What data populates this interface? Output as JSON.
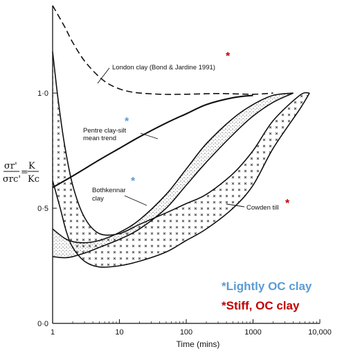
{
  "chart_data": {
    "type": "line",
    "title": "",
    "xlabel": "Time (mins)",
    "ylabel_parts": {
      "lhs_top": "σr'",
      "lhs_bottom": "σrc'",
      "rhs_top": "K",
      "rhs_bottom": "Kc",
      "equals": "="
    },
    "x_scale": "log",
    "xlim": [
      1,
      10000
    ],
    "ylim": [
      0,
      1.38
    ],
    "x_ticks": [
      {
        "value": 1,
        "label": "1"
      },
      {
        "value": 10,
        "label": "10"
      },
      {
        "value": 100,
        "label": "100"
      },
      {
        "value": 1000,
        "label": "1000"
      },
      {
        "value": 10000,
        "label": "10,000"
      }
    ],
    "y_ticks": [
      {
        "value": 0,
        "label": "0·0"
      },
      {
        "value": 0.5,
        "label": "0·5"
      },
      {
        "value": 1.0,
        "label": "1·0"
      }
    ],
    "series": [
      {
        "name": "London clay (Bond & Jardine 1991)",
        "style": "dashed",
        "x": [
          1,
          1.5,
          2,
          3,
          5,
          8,
          15,
          40,
          100,
          300,
          1000,
          2000
        ],
        "y": [
          1.38,
          1.29,
          1.22,
          1.14,
          1.07,
          1.03,
          1.005,
          0.995,
          0.995,
          0.998,
          0.995,
          1.0
        ]
      },
      {
        "name": "Pentre clay-silt mean trend",
        "style": "solid",
        "x": [
          1,
          2,
          5,
          10,
          20,
          50,
          100,
          200,
          500,
          1000
        ],
        "y": [
          0.59,
          0.64,
          0.71,
          0.76,
          0.81,
          0.87,
          0.91,
          0.95,
          0.98,
          0.99
        ]
      }
    ],
    "bands": [
      {
        "name": "Bothkennar clay",
        "fill": "stipple",
        "x_upper": [
          1,
          1.5,
          2,
          3,
          5,
          10,
          20,
          50,
          100,
          200,
          500,
          1000,
          2000,
          4000
        ],
        "y_upper": [
          0.41,
          0.37,
          0.355,
          0.35,
          0.36,
          0.395,
          0.45,
          0.56,
          0.67,
          0.78,
          0.89,
          0.95,
          0.99,
          1.0
        ],
        "x_lower": [
          1,
          1.5,
          2,
          3,
          5,
          10,
          20,
          50,
          100,
          200,
          500,
          1000,
          2000,
          4000
        ],
        "y_lower": [
          0.29,
          0.285,
          0.29,
          0.305,
          0.33,
          0.365,
          0.41,
          0.5,
          0.6,
          0.7,
          0.82,
          0.9,
          0.96,
          1.0
        ]
      },
      {
        "name": "Cowden till",
        "fill": "crosses",
        "x_upper": [
          1,
          1.2,
          1.5,
          2,
          3,
          5,
          10,
          20,
          50,
          100,
          200,
          500,
          1000,
          2000,
          5000,
          7000
        ],
        "y_upper": [
          1.18,
          0.98,
          0.78,
          0.6,
          0.46,
          0.39,
          0.39,
          0.43,
          0.48,
          0.52,
          0.56,
          0.65,
          0.75,
          0.88,
          0.99,
          1.0
        ],
        "x_lower": [
          1,
          1.3,
          1.6,
          2,
          3,
          5,
          10,
          20,
          50,
          100,
          200,
          500,
          1000,
          2000,
          5000,
          7000
        ],
        "y_lower": [
          0.62,
          0.5,
          0.4,
          0.33,
          0.27,
          0.245,
          0.25,
          0.27,
          0.31,
          0.36,
          0.41,
          0.5,
          0.6,
          0.76,
          0.93,
          1.0
        ]
      }
    ],
    "annotations": [
      {
        "text": "London clay (Bond & Jardine 1991)"
      },
      {
        "text": "Pentre clay-silt"
      },
      {
        "text": "mean trend"
      },
      {
        "text": "Bothkennar"
      },
      {
        "text": "clay"
      },
      {
        "text": "Cowden till"
      }
    ]
  },
  "legend": {
    "star": "*",
    "lightly": {
      "text": "Lightly OC clay",
      "color": "#5b9bd5"
    },
    "stiff": {
      "text": "Stiff, OC clay",
      "color": "#c00000"
    }
  }
}
